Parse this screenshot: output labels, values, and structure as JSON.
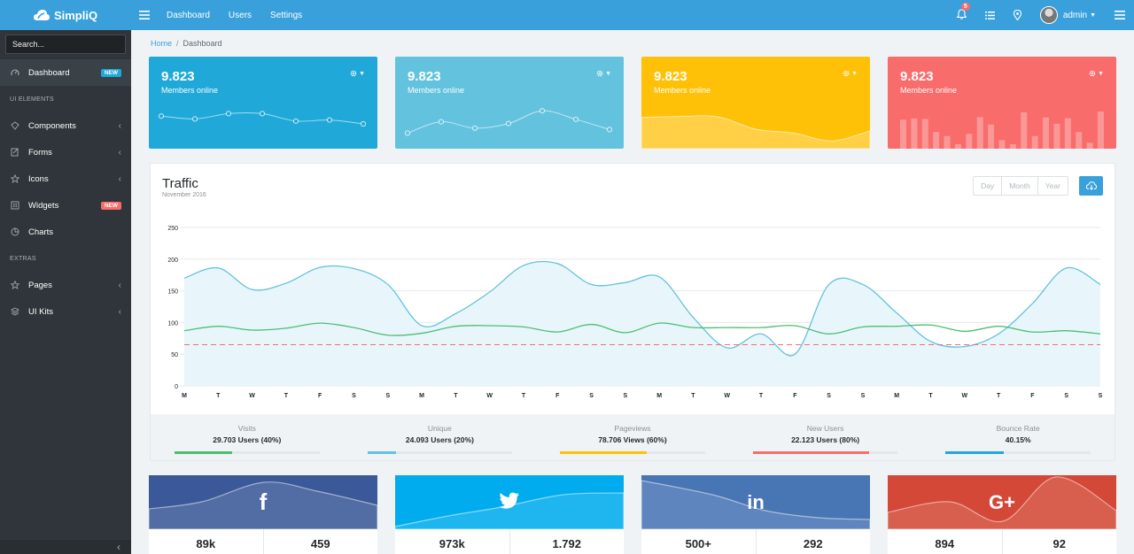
{
  "brand": {
    "name": "SimpliQ"
  },
  "topnav": [
    "Dashboard",
    "Users",
    "Settings"
  ],
  "notifications": {
    "count": "5"
  },
  "user": {
    "name": "admin"
  },
  "sidebar": {
    "search_placeholder": "Search...",
    "items": [
      {
        "type": "item",
        "label": "Dashboard",
        "icon": "speedometer-icon",
        "badge": "NEW",
        "badge_color": "#20a8d8",
        "active": true
      },
      {
        "type": "title",
        "label": "UI ELEMENTS"
      },
      {
        "type": "item",
        "label": "Components",
        "icon": "puzzle-icon",
        "chevron": true
      },
      {
        "type": "item",
        "label": "Forms",
        "icon": "note-icon",
        "chevron": true
      },
      {
        "type": "item",
        "label": "Icons",
        "icon": "star-icon",
        "chevron": true
      },
      {
        "type": "item",
        "label": "Widgets",
        "icon": "calculator-icon",
        "badge": "NEW",
        "badge_color": "#f86c6b"
      },
      {
        "type": "item",
        "label": "Charts",
        "icon": "pie-chart-icon"
      },
      {
        "type": "title",
        "label": "EXTRAS"
      },
      {
        "type": "item",
        "label": "Pages",
        "icon": "star-icon",
        "chevron": true
      },
      {
        "type": "item",
        "label": "UI Kits",
        "icon": "layers-icon",
        "chevron": true
      }
    ]
  },
  "breadcrumb": {
    "home": "Home",
    "sep": "/",
    "current": "Dashboard"
  },
  "stat_cards": [
    {
      "value": "9.823",
      "label": "Members online",
      "color": "#20a8d8",
      "spark": [
        62,
        54,
        69,
        69,
        48,
        51,
        40
      ]
    },
    {
      "value": "9.823",
      "label": "Members online",
      "color": "#63c2de",
      "spark": [
        14,
        46,
        28,
        41,
        77,
        53,
        24
      ]
    },
    {
      "value": "9.823",
      "label": "Members online",
      "color": "#ffc107",
      "spark": [
        78,
        81,
        80,
        45,
        34,
        12,
        40
      ]
    },
    {
      "value": "9.823",
      "label": "Members online",
      "color": "#f86c6b",
      "bars": [
        78,
        81,
        80,
        45,
        34,
        12,
        40,
        85,
        65,
        23,
        12,
        98,
        34,
        84,
        67,
        82,
        45,
        16,
        100
      ]
    }
  ],
  "traffic": {
    "title": "Traffic",
    "subtitle": "November 2016",
    "periods": [
      "Day",
      "Month",
      "Year"
    ]
  },
  "chart_data": {
    "type": "line",
    "x": [
      "M",
      "T",
      "W",
      "T",
      "F",
      "S",
      "S",
      "M",
      "T",
      "W",
      "T",
      "F",
      "S",
      "S",
      "M",
      "T",
      "W",
      "T",
      "F",
      "S",
      "S",
      "M",
      "T",
      "W",
      "T",
      "F",
      "S",
      "S"
    ],
    "ylim": [
      0,
      250
    ],
    "yticks": [
      "0",
      "50",
      "100",
      "150",
      "200",
      "250"
    ],
    "series": [
      {
        "color": "#63c2de",
        "fill": "#e8f6fb",
        "values": [
          170,
          186,
          152,
          162,
          187,
          185,
          160,
          95,
          114,
          148,
          190,
          193,
          160,
          163,
          172,
          108,
          60,
          82,
          50,
          160,
          160,
          115,
          70,
          62,
          82,
          130,
          186,
          160
        ]
      },
      {
        "color": "#4dbd74",
        "values": [
          87,
          94,
          88,
          91,
          99,
          92,
          80,
          83,
          94,
          95,
          93,
          85,
          97,
          84,
          99,
          92,
          92,
          92,
          95,
          82,
          93,
          94,
          96,
          86,
          94,
          85,
          87,
          82
        ]
      },
      {
        "color": "#f86c6b",
        "dash": true,
        "values": [
          65,
          65,
          65,
          65,
          65,
          65,
          65,
          65,
          65,
          65,
          65,
          65,
          65,
          65,
          65,
          65,
          65,
          65,
          65,
          65,
          65,
          65,
          65,
          65,
          65,
          65,
          65,
          65
        ]
      }
    ]
  },
  "traffic_stats": [
    {
      "label": "Visits",
      "value": "29.703 Users (40%)",
      "percent": 40,
      "color": "#4dbd74"
    },
    {
      "label": "Unique",
      "value": "24.093 Users (20%)",
      "percent": 20,
      "color": "#63c2de"
    },
    {
      "label": "Pageviews",
      "value": "78.706 Views (60%)",
      "percent": 60,
      "color": "#ffc107"
    },
    {
      "label": "New Users",
      "value": "22.123 Users (80%)",
      "percent": 80,
      "color": "#f86c6b"
    },
    {
      "label": "Bounce Rate",
      "value": "40.15%",
      "percent": 40,
      "color": "#20a8d8"
    }
  ],
  "social": [
    {
      "icon": "facebook-icon",
      "glyph": "f",
      "color": "#3b5998",
      "left": "89k",
      "right": "459"
    },
    {
      "icon": "twitter-icon",
      "glyph": "twitter",
      "color": "#00aced",
      "left": "973k",
      "right": "1.792"
    },
    {
      "icon": "linkedin-icon",
      "glyph": "in",
      "color": "#4875b4",
      "left": "500+",
      "right": "292"
    },
    {
      "icon": "google-plus-icon",
      "glyph": "G+",
      "color": "#d34836",
      "left": "894",
      "right": "92"
    }
  ]
}
